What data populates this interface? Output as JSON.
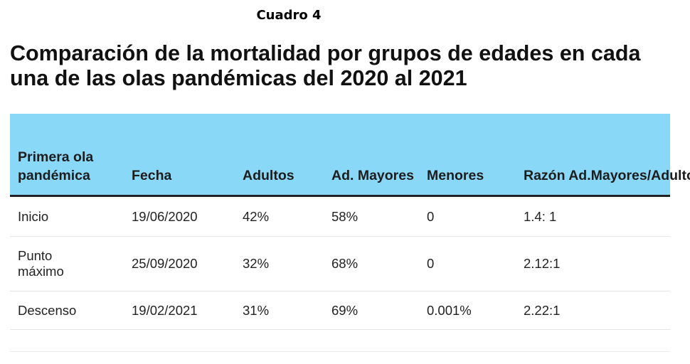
{
  "caption": "Cuadro 4",
  "title": "Comparación de la mortalidad por grupos de edades en cada una de las olas pandémicas del 2020 al 2021",
  "table": {
    "headers": [
      "Primera ola pandémica",
      "Fecha",
      "Adultos",
      "Ad. Mayores",
      "Menores",
      "Razón Ad.Mayores/Adultos"
    ],
    "rows": [
      [
        "Inicio",
        "19/06/2020",
        "42%",
        "58%",
        "0",
        "1.4: 1"
      ],
      [
        "Punto máximo",
        "25/09/2020",
        "32%",
        "68%",
        "0",
        "2.12:1"
      ],
      [
        "Descenso",
        "19/02/2021",
        "31%",
        "69%",
        "0.001%",
        "2.22:1"
      ]
    ]
  },
  "colors": {
    "header_background": "#8ad8f8",
    "header_rule": "#222222",
    "row_divider": "#e4e4e4"
  }
}
